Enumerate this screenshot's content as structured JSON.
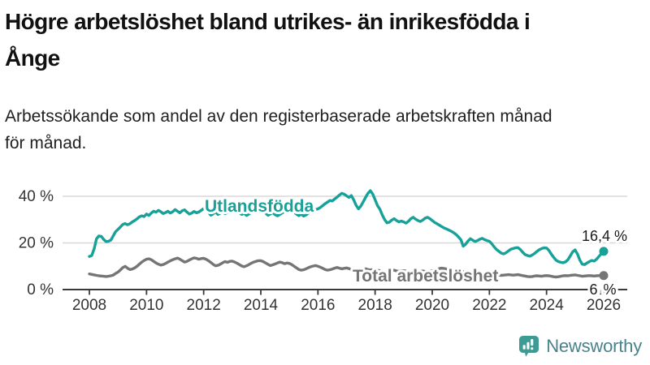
{
  "page": {
    "title": "Högre arbetslöshet bland utrikes- än inrikesfödda i Ånge",
    "title_lines": [
      "Högre arbetslöshet bland utrikes- än inrikesfödda i",
      "Ånge"
    ],
    "subtitle": "Arbetssökande som andel av den registerbaserade arbetskraften månad för månad.",
    "subtitle_lines": [
      "Arbetssökande som andel av den registerbaserade arbetskraften månad",
      "för månad."
    ]
  },
  "branding": {
    "logo_text": "Newsworthy",
    "icon": "newsworthy-speech-bubble-bar-chart-icon",
    "icon_color": "#3D9B94",
    "text_color": "#48828C"
  },
  "chart_data": {
    "type": "line",
    "unit": "%",
    "x_ticks": [
      2008,
      2010,
      2012,
      2014,
      2016,
      2018,
      2020,
      2022,
      2024,
      2026
    ],
    "xlim": [
      2008,
      2026
    ],
    "ylim": [
      0,
      45
    ],
    "y_ticks": [
      {
        "value": 0,
        "label": "0 %"
      },
      {
        "value": 20,
        "label": "20 %"
      },
      {
        "value": 40,
        "label": "40 %"
      }
    ],
    "grid": true,
    "legend_position": "inline-labels",
    "colors": {
      "grid": "#d8d8d8",
      "axis": "#3a3a3a",
      "end_label_text": "#1a1a1a"
    },
    "series": [
      {
        "name": "Utlandsfödda",
        "color": "#18A198",
        "end_label": "16,4 %",
        "start_year": 2008,
        "points_per_year": 12,
        "monthly_values": [
          14.2,
          14.6,
          17.5,
          21.8,
          23.0,
          22.8,
          21.5,
          20.6,
          20.7,
          21.2,
          23.0,
          24.8,
          25.8,
          26.8,
          27.9,
          28.3,
          27.8,
          28.2,
          29.0,
          29.6,
          30.3,
          31.2,
          31.6,
          31.3,
          32.4,
          31.8,
          32.8,
          33.6,
          33.2,
          34.0,
          33.4,
          32.6,
          33.0,
          33.6,
          32.8,
          33.4,
          34.3,
          33.6,
          32.9,
          33.8,
          34.2,
          33.2,
          32.4,
          32.8,
          33.5,
          32.9,
          33.3,
          34.0,
          34.7,
          34.2,
          33.1,
          31.9,
          32.5,
          33.3,
          32.2,
          32.8,
          33.4,
          32.6,
          33.0,
          33.8,
          34.4,
          33.7,
          34.1,
          33.0,
          32.2,
          32.7,
          31.8,
          32.4,
          33.1,
          33.7,
          33.2,
          33.9,
          34.2,
          33.5,
          32.8,
          31.9,
          32.4,
          33.0,
          32.1,
          31.6,
          32.2,
          32.9,
          33.4,
          33.0,
          33.6,
          34.0,
          33.2,
          32.3,
          31.7,
          32.4,
          31.5,
          32.0,
          32.8,
          33.5,
          34.0,
          34.3,
          34.6,
          35.2,
          36.0,
          36.8,
          37.5,
          38.2,
          38.0,
          38.8,
          39.6,
          40.5,
          41.3,
          40.9,
          40.2,
          39.5,
          40.3,
          38.5,
          36.2,
          34.6,
          35.8,
          37.6,
          39.5,
          41.3,
          42.4,
          41.0,
          38.5,
          36.0,
          34.5,
          32.0,
          30.0,
          28.6,
          28.9,
          29.8,
          30.4,
          29.6,
          29.0,
          29.4,
          29.0,
          28.5,
          29.3,
          30.4,
          31.0,
          30.2,
          29.6,
          29.2,
          29.8,
          30.6,
          31.0,
          30.4,
          29.6,
          28.8,
          28.2,
          27.6,
          27.0,
          26.4,
          26.0,
          25.5,
          25.0,
          24.4,
          23.6,
          22.6,
          21.4,
          18.6,
          19.4,
          20.8,
          21.8,
          21.2,
          20.6,
          21.0,
          21.6,
          22.0,
          21.4,
          21.0,
          20.7,
          19.6,
          18.3,
          17.2,
          16.4,
          15.6,
          15.3,
          15.8,
          16.6,
          17.3,
          17.6,
          17.9,
          18.0,
          17.2,
          16.0,
          15.0,
          14.6,
          14.3,
          14.8,
          15.5,
          16.4,
          17.1,
          17.6,
          17.9,
          17.8,
          16.8,
          15.2,
          13.8,
          12.6,
          12.0,
          11.7,
          11.5,
          11.9,
          12.8,
          14.5,
          16.2,
          17.0,
          15.2,
          12.6,
          10.9,
          10.7,
          11.4,
          12.0,
          12.5,
          12.2,
          13.0,
          14.2,
          15.4,
          16.4
        ]
      },
      {
        "name": "Total arbetslöshet",
        "color": "#757575",
        "end_label": "6 %",
        "trend_arrow": "↓",
        "start_year": 2008,
        "points_per_year": 12,
        "monthly_values": [
          6.7,
          6.5,
          6.3,
          6.1,
          5.9,
          5.8,
          5.7,
          5.6,
          5.7,
          5.9,
          6.2,
          6.9,
          7.5,
          8.4,
          9.4,
          10.0,
          9.2,
          8.6,
          8.8,
          9.3,
          10.0,
          10.9,
          11.8,
          12.5,
          13.0,
          13.2,
          12.8,
          12.1,
          11.4,
          10.9,
          10.5,
          10.7,
          11.2,
          11.8,
          12.3,
          12.8,
          13.2,
          13.5,
          13.0,
          12.4,
          11.8,
          12.1,
          12.7,
          13.2,
          13.6,
          13.4,
          13.0,
          13.3,
          13.4,
          13.0,
          12.4,
          11.6,
          10.8,
          10.2,
          10.4,
          10.9,
          11.5,
          12.0,
          11.7,
          12.1,
          12.2,
          11.8,
          11.3,
          10.7,
          10.1,
          9.8,
          10.2,
          10.7,
          11.3,
          11.8,
          12.1,
          12.4,
          12.4,
          12.0,
          11.4,
          10.8,
          10.3,
          10.6,
          11.0,
          11.4,
          11.8,
          11.5,
          11.1,
          11.4,
          11.2,
          10.7,
          10.0,
          9.3,
          8.6,
          8.3,
          8.5,
          8.9,
          9.4,
          9.8,
          10.1,
          10.3,
          10.0,
          9.6,
          9.1,
          8.6,
          8.3,
          8.5,
          8.8,
          9.2,
          9.5,
          9.2,
          8.9,
          9.1,
          9.3,
          9.0,
          8.6,
          8.2,
          7.9,
          8.1,
          8.4,
          8.7,
          8.9,
          8.6,
          8.4,
          8.6,
          8.7,
          8.4,
          8.0,
          7.7,
          7.5,
          7.7,
          7.9,
          8.1,
          8.3,
          8.0,
          7.8,
          8.0,
          8.1,
          7.9,
          7.6,
          7.4,
          7.2,
          7.4,
          7.6,
          7.8,
          8.0,
          7.8,
          7.6,
          7.8,
          8.0,
          8.2,
          8.6,
          9.0,
          9.2,
          9.0,
          8.8,
          8.6,
          8.4,
          8.2,
          8.0,
          7.8,
          7.8,
          7.6,
          7.4,
          7.2,
          7.0,
          6.9,
          6.8,
          6.8,
          6.9,
          7.0,
          6.9,
          6.8,
          6.8,
          6.7,
          6.5,
          6.3,
          6.2,
          6.1,
          6.2,
          6.3,
          6.4,
          6.3,
          6.2,
          6.3,
          6.4,
          6.2,
          6.0,
          5.8,
          5.6,
          5.5,
          5.6,
          5.8,
          5.9,
          5.8,
          5.7,
          5.9,
          6.0,
          5.9,
          5.7,
          5.5,
          5.4,
          5.5,
          5.7,
          5.9,
          6.0,
          5.9,
          6.1,
          6.2,
          6.3,
          6.1,
          5.9,
          5.7,
          5.8,
          5.9,
          6.0,
          5.9,
          5.8,
          5.9,
          6.0,
          6.0,
          6.0
        ]
      }
    ]
  }
}
